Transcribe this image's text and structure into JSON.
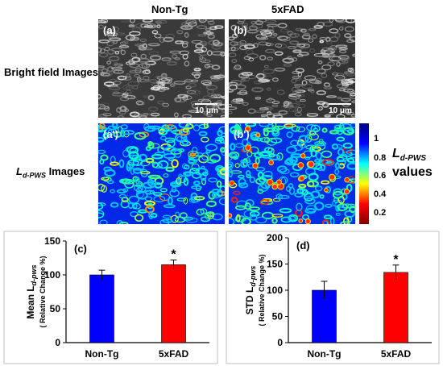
{
  "figure": {
    "col_headers": [
      "Non-Tg",
      "5xFAD"
    ],
    "row_labels": {
      "bright": "Bright field Images",
      "ld_main": "L",
      "ld_sub": "d-PWS",
      "ld_tail": " Images"
    },
    "panel_tags": [
      "(a)",
      "(b)",
      "(a')",
      "(b')",
      "(c)",
      "(d)"
    ],
    "scale_bar_label": "10 μm",
    "colorbar": {
      "ticks": [
        "1",
        "0.8",
        "0.6",
        "0.4",
        "0.2"
      ],
      "title_main": "L",
      "title_sub": "d-PWS",
      "title_line2": "values",
      "colors": [
        "#000080",
        "#0000ff",
        "#00ffff",
        "#ffff00",
        "#ff0000",
        "#800000"
      ]
    }
  },
  "chart_data": [
    {
      "type": "bar",
      "panel": "(c)",
      "categories": [
        "Non-Tg",
        "5xFAD"
      ],
      "values": [
        100,
        115
      ],
      "errors": [
        7,
        7
      ],
      "colors": [
        "#0000ff",
        "#ff0000"
      ],
      "significance": [
        "",
        "*"
      ],
      "ylabel_main": "Mean L",
      "ylabel_sub": "d-pws",
      "ylabel_line2": "( Relative Change %)",
      "ylim": [
        0,
        150
      ],
      "yticks": [
        0,
        50,
        100,
        150
      ]
    },
    {
      "type": "bar",
      "panel": "(d)",
      "categories": [
        "Non-Tg",
        "5xFAD"
      ],
      "values": [
        100,
        134
      ],
      "errors": [
        17,
        14
      ],
      "colors": [
        "#0000ff",
        "#ff0000"
      ],
      "significance": [
        "",
        "*"
      ],
      "ylabel_main": "STD L",
      "ylabel_sub": "d-pws",
      "ylabel_line2": "( Relative Change %)",
      "ylim": [
        0,
        200
      ],
      "yticks": [
        0,
        50,
        100,
        150,
        200
      ]
    }
  ]
}
